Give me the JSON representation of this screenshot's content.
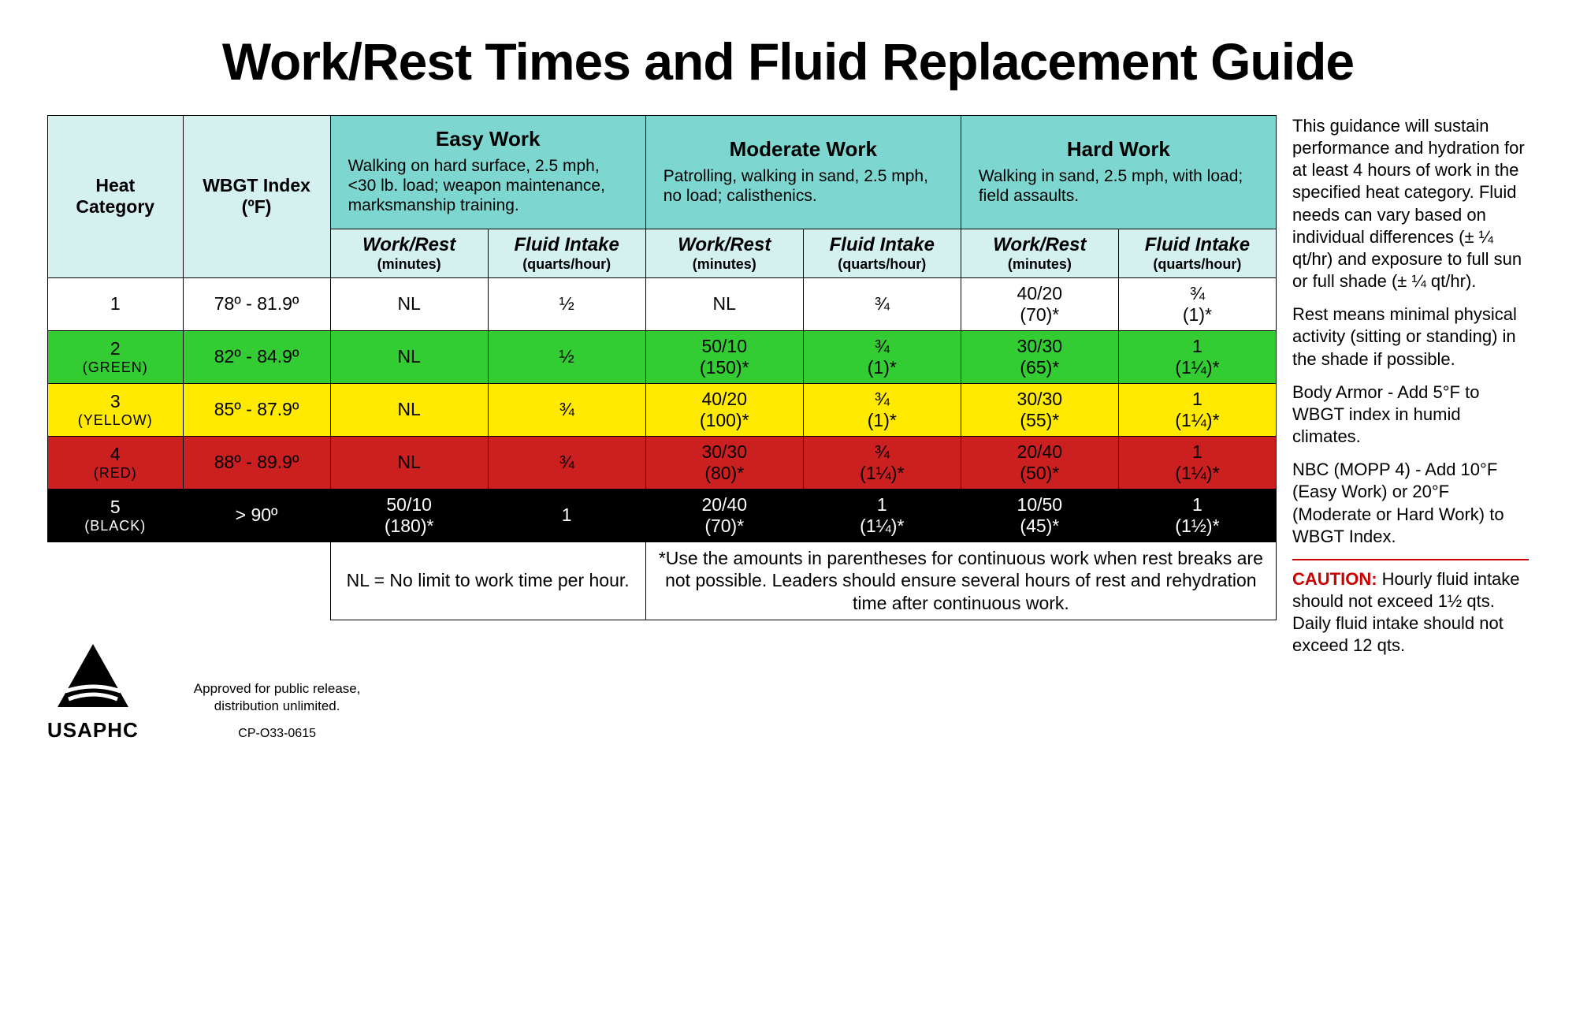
{
  "title": "Work/Rest Times and Fluid Replacement Guide",
  "headers": {
    "heat_cat": "Heat Category",
    "wbgt": "WBGT Index (ºF)",
    "work_levels": [
      {
        "title": "Easy Work",
        "desc": "Walking on hard surface, 2.5 mph, <30 lb. load; weapon maintenance, marksmanship training."
      },
      {
        "title": "Moderate Work",
        "desc": "Patrolling, walking in sand, 2.5 mph, no load; calisthenics."
      },
      {
        "title": "Hard Work",
        "desc": "Walking in sand, 2.5 mph, with load; field assaults."
      }
    ],
    "sub": {
      "workrest": "Work/Rest",
      "workrest_unit": "(minutes)",
      "fluid": "Fluid Intake",
      "fluid_unit": "(quarts/hour)"
    }
  },
  "rows": [
    {
      "class": "row-white",
      "cat": "1",
      "flag": "",
      "wbgt": "78º - 81.9º",
      "cells": [
        "NL",
        "½",
        "NL",
        "¾",
        "40/20 (70)*",
        "¾ (1)*"
      ]
    },
    {
      "class": "row-green",
      "cat": "2",
      "flag": "(GREEN)",
      "wbgt": "82º - 84.9º",
      "cells": [
        "NL",
        "½",
        "50/10 (150)*",
        "¾ (1)*",
        "30/30 (65)*",
        "1 (1¼)*"
      ]
    },
    {
      "class": "row-yellow",
      "cat": "3",
      "flag": "(YELLOW)",
      "wbgt": "85º - 87.9º",
      "cells": [
        "NL",
        "¾",
        "40/20 (100)*",
        "¾ (1)*",
        "30/30 (55)*",
        "1 (1¼)*"
      ]
    },
    {
      "class": "row-red",
      "cat": "4",
      "flag": "(RED)",
      "wbgt": "88º - 89.9º",
      "cells": [
        "NL",
        "¾",
        "30/30 (80)*",
        "¾ (1¼)*",
        "20/40 (50)*",
        "1 (1¼)*"
      ]
    },
    {
      "class": "row-black",
      "cat": "5",
      "flag": "(BLACK)",
      "wbgt": "> 90º",
      "cells": [
        "50/10 (180)*",
        "1",
        "20/40 (70)*",
        "1 (1¼)*",
        "10/50 (45)*",
        "1 (1½)*"
      ]
    }
  ],
  "footnotes": {
    "nl": "NL = No limit to work time per hour.",
    "star": "*Use the amounts in parentheses for continuous work when rest breaks are not possible. Leaders should ensure several hours of rest and rehydration time after continuous work."
  },
  "side": {
    "p1": "This guidance will sustain performance and hydration for at least 4 hours of work in the specified heat category. Fluid needs can vary based on individual differences (± ¼ qt/hr) and exposure to full sun or full shade (± ¼ qt/hr).",
    "p2": "Rest means minimal physical activity (sitting or standing) in the shade if possible.",
    "p3": "Body Armor - Add 5°F to WBGT index in humid climates.",
    "p4": "NBC (MOPP 4) - Add 10°F (Easy Work) or 20°F (Moderate or Hard Work) to WBGT Index.",
    "caution_label": "CAUTION:",
    "caution_text": " Hourly fluid intake should not exceed 1½ qts. Daily fluid intake should not exceed 12 qts."
  },
  "footer": {
    "org": "USAPHC",
    "release1": "Approved for public release,",
    "release2": "distribution unlimited.",
    "docnum": "CP-O33-0615"
  },
  "colors": {
    "header_pale": "#d4f0ef",
    "header_teal": "#7ed6d0",
    "row_green": "#33cc33",
    "row_yellow": "#ffea00",
    "row_red": "#cc1f1f",
    "row_black": "#000000",
    "caution": "#cc0000"
  }
}
